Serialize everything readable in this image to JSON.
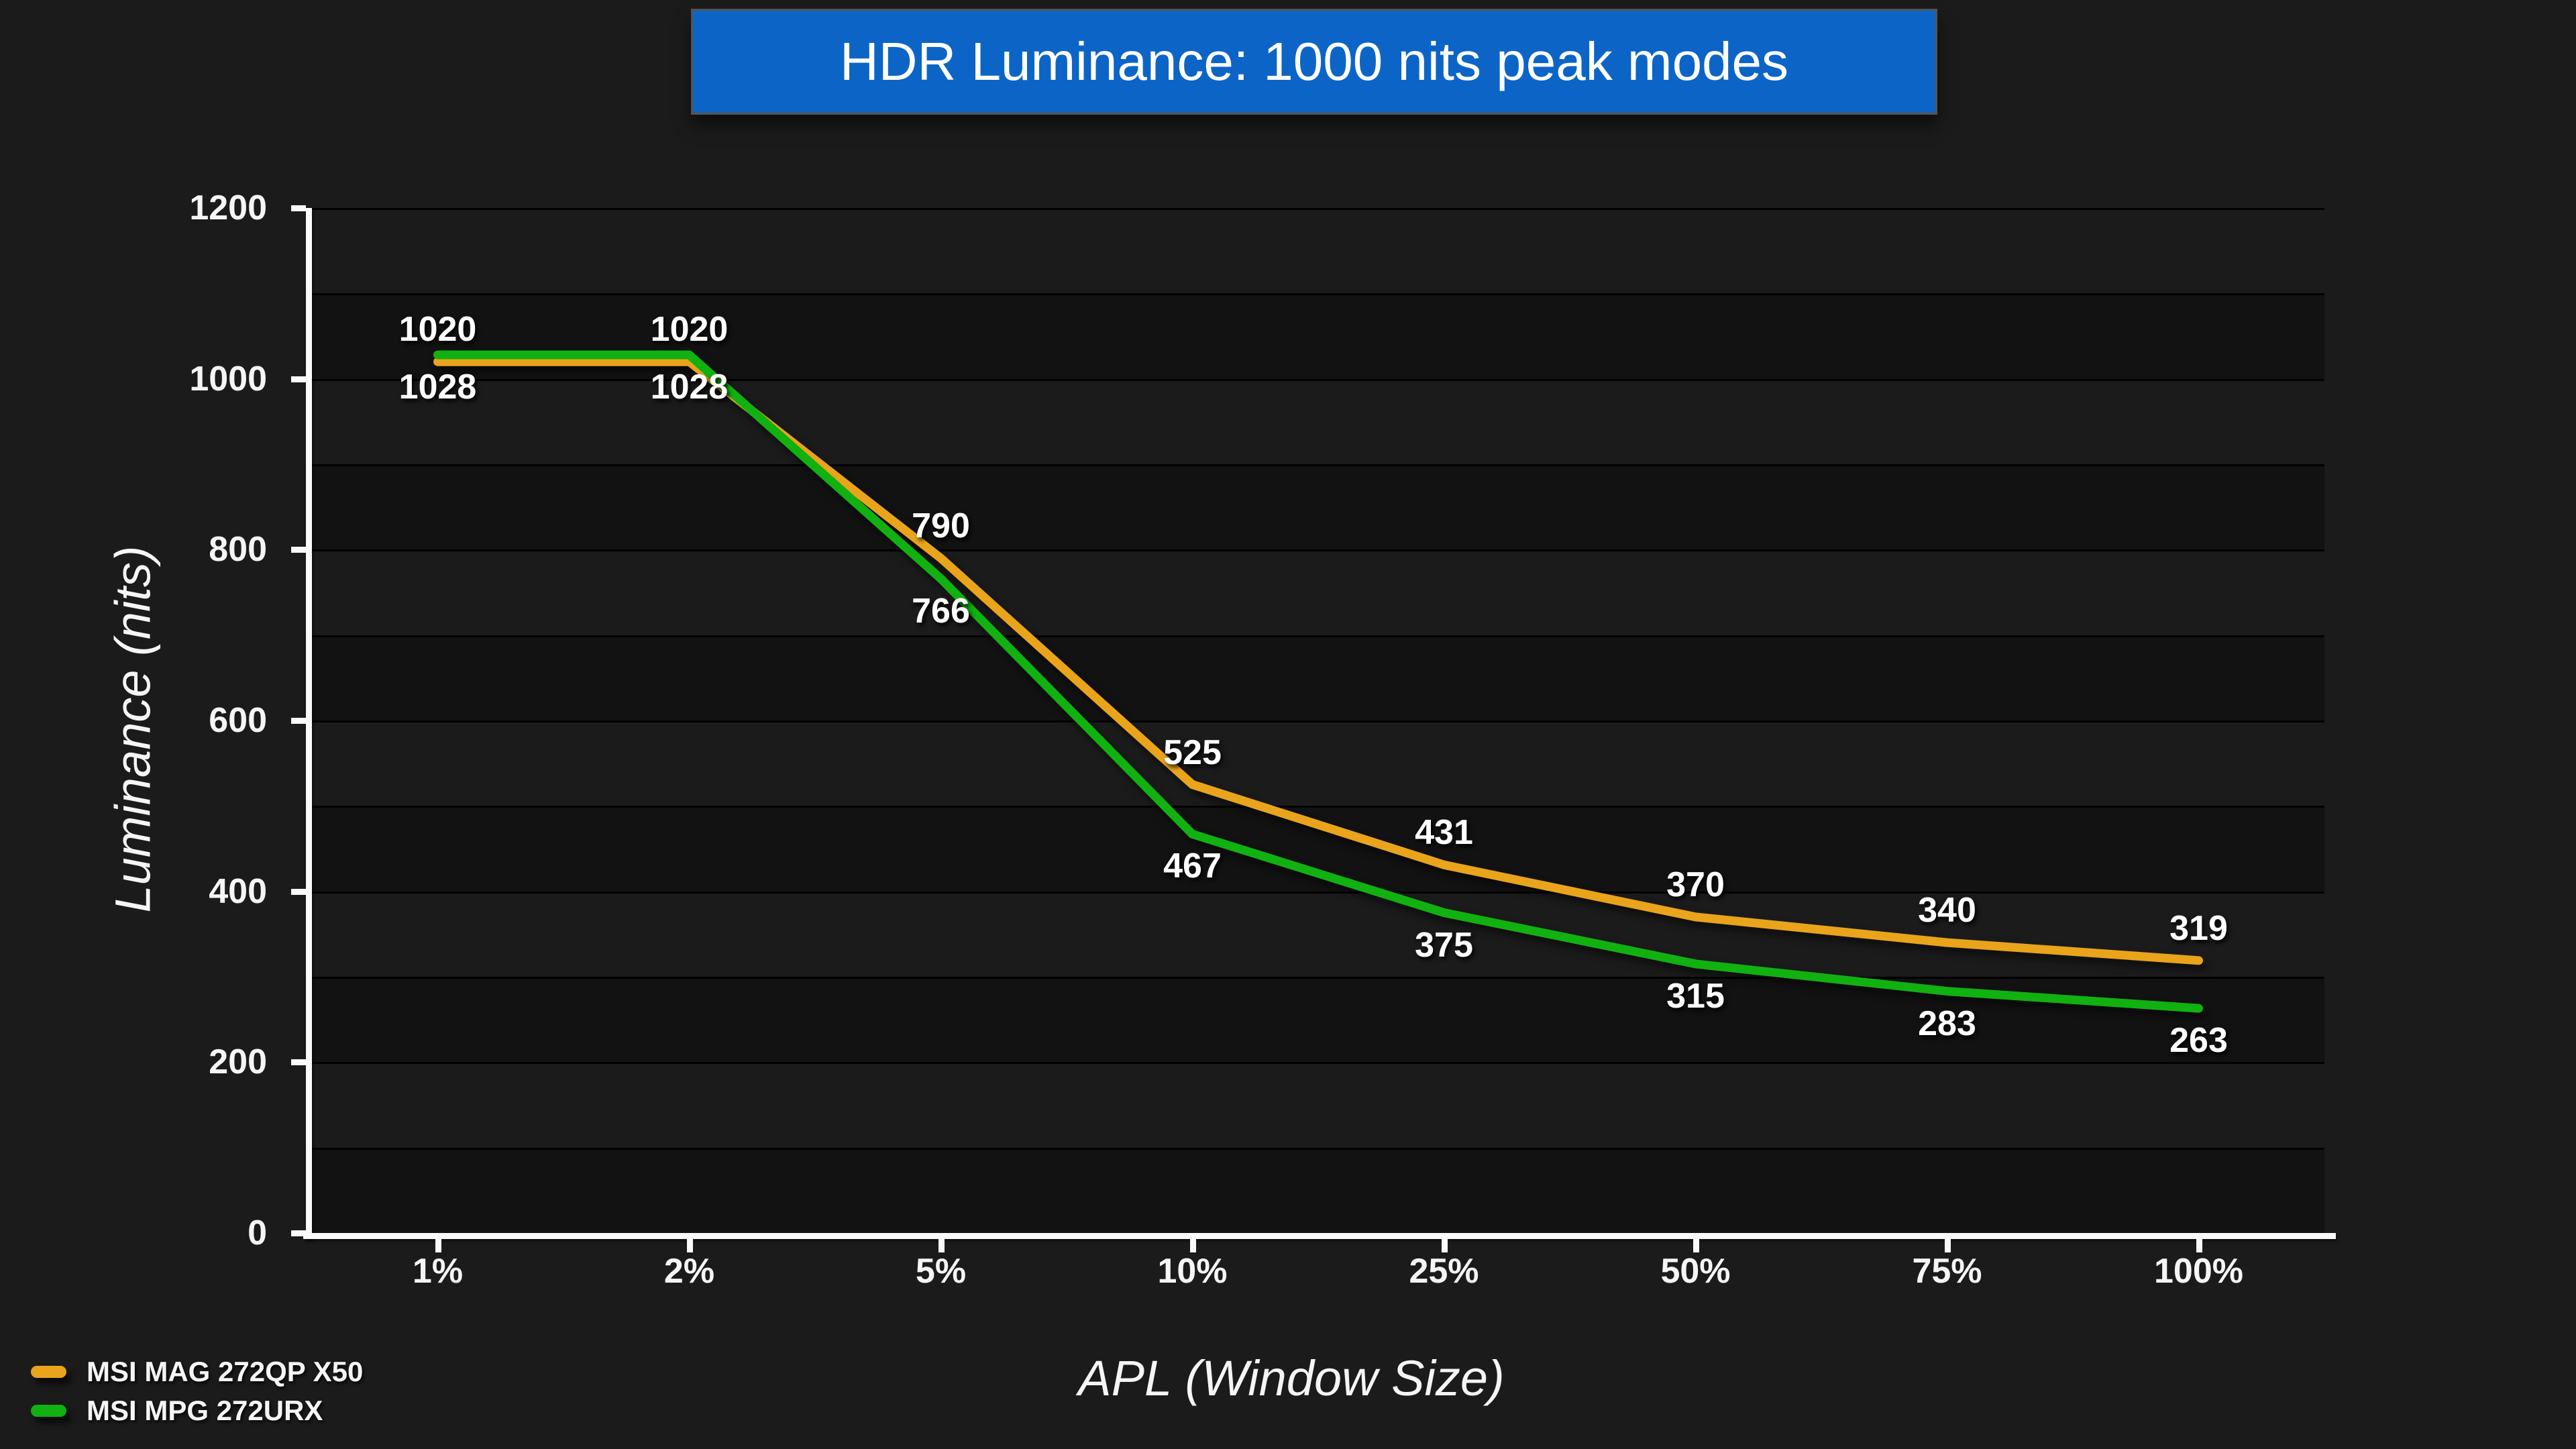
{
  "chart_data": {
    "type": "line",
    "title": "HDR Luminance: 1000 nits peak modes",
    "xlabel": "APL (Window Size)",
    "ylabel": "Luminance (nits)",
    "categories": [
      "1%",
      "2%",
      "5%",
      "10%",
      "25%",
      "50%",
      "75%",
      "100%"
    ],
    "series": [
      {
        "name": "MSI MAG 272QP X50",
        "color": "#E9A41C",
        "values": [
          1020,
          1020,
          790,
          525,
          431,
          370,
          340,
          319
        ],
        "label_position": "above"
      },
      {
        "name": "MSI MPG 272URX",
        "color": "#10B110",
        "values": [
          1028,
          1028,
          766,
          467,
          375,
          315,
          283,
          263
        ],
        "label_position": "below"
      }
    ],
    "ylim": [
      0,
      1200
    ],
    "y_major_ticks": [
      0,
      200,
      400,
      600,
      800,
      1000,
      1200
    ],
    "y_minor_grid_step": 100,
    "grid": "horizontal",
    "legend_position": "bottom-left"
  },
  "colors": {
    "page_bg": "#1B1B1B",
    "band_light": "#1B1B1B",
    "band_dark": "#121212",
    "gridline": "#000000",
    "axis": "#FAFAFA",
    "title_bg": "#0C65C6",
    "title_border": "#56544E",
    "text": "#F5F5F5"
  }
}
